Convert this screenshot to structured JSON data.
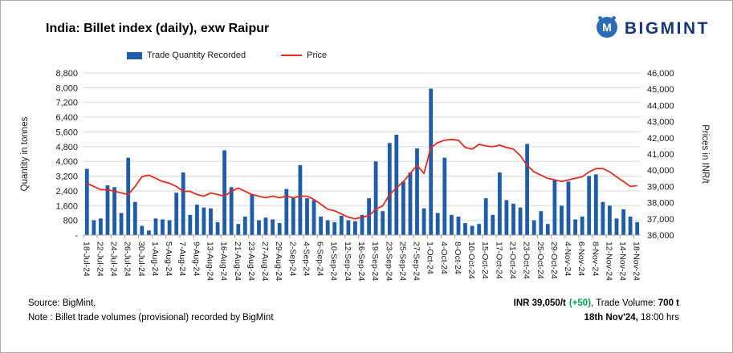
{
  "header": {
    "title": "India: Billet index (daily), exw Raipur",
    "logo_text": "BIGMINT"
  },
  "legend": {
    "bars_label": "Trade Quantity Recorded",
    "line_label": "Price"
  },
  "axes": {
    "left_title": "Quantity in tonnes",
    "right_title": "Prices in INR/t",
    "left_ticks": [
      "-",
      "800",
      "1,600",
      "2,400",
      "3,200",
      "4,000",
      "4,800",
      "5,600",
      "6,400",
      "7,200",
      "8,000",
      "8,800"
    ],
    "right_ticks": [
      "36,000",
      "37,000",
      "38,000",
      "39,000",
      "40,000",
      "41,000",
      "42,000",
      "43,000",
      "44,000",
      "45,000",
      "46,000"
    ]
  },
  "chart_data": {
    "type": "combo",
    "title": "India: Billet index (daily), exw Raipur",
    "xlabel": "",
    "left_axis": {
      "label": "Quantity in tonnes",
      "min": 0,
      "max": 8800,
      "step": 800
    },
    "right_axis": {
      "label": "Prices in INR/t",
      "min": 36000,
      "max": 46000,
      "step": 1000
    },
    "grid": "horizontal",
    "legend_position": "top",
    "label_every": 2,
    "x_tick_labels": [
      "18-Jul-24",
      "22-Jul-24",
      "24-Jul-24",
      "26-Jul-24",
      "30-Jul-24",
      "1-Aug-24",
      "5-Aug-24",
      "7-Aug-24",
      "9-Aug-24",
      "13-Aug-24",
      "16-Aug-24",
      "21-Aug-24",
      "23-Aug-24",
      "27-Aug-24",
      "29-Aug-24",
      "2-Sep-24",
      "4-Sep-24",
      "6-Sep-24",
      "10-Sep-24",
      "12-Sep-24",
      "16-Sep-24",
      "19-Sep-24",
      "23-Sep-24",
      "25-Sep-24",
      "27-Sep-24",
      "1-Oct-24",
      "4-Oct-24",
      "8-Oct-24",
      "10-Oct-24",
      "15-Oct-24",
      "17-Oct-24",
      "21-Oct-24",
      "23-Oct-24",
      "25-Oct-24",
      "29-Oct-24",
      "4-Nov-24",
      "6-Nov-24",
      "8-Nov-24",
      "12-Nov-24",
      "14-Nov-24",
      "18-Nov-24"
    ],
    "series": [
      {
        "name": "Trade Quantity Recorded",
        "type": "bar",
        "axis": "left",
        "color": "#1f5caa",
        "values": [
          3600,
          800,
          900,
          2700,
          2600,
          1200,
          4200,
          1800,
          500,
          250,
          900,
          850,
          800,
          2300,
          3400,
          1100,
          1650,
          1500,
          1450,
          700,
          4600,
          2600,
          600,
          1000,
          2200,
          800,
          950,
          850,
          650,
          2500,
          2050,
          3800,
          2000,
          1900,
          1000,
          800,
          700,
          1050,
          800,
          750,
          1100,
          2000,
          4000,
          1300,
          5000,
          5450,
          2900,
          3400,
          4700,
          1450,
          7950,
          1200,
          4200,
          1100,
          1000,
          650,
          500,
          600,
          2000,
          1100,
          3400,
          1900,
          1700,
          1500,
          4950,
          800,
          1300,
          600,
          3000,
          1600,
          2900,
          850,
          1000,
          3200,
          3300,
          1800,
          1600,
          900,
          1400,
          1000,
          700
        ]
      },
      {
        "name": "Price",
        "type": "line",
        "axis": "right",
        "color": "#e02b20",
        "values": [
          39200,
          39000,
          38800,
          38800,
          38700,
          38600,
          38500,
          39000,
          39600,
          39700,
          39500,
          39300,
          39200,
          39000,
          38700,
          38700,
          38500,
          38400,
          38600,
          38500,
          38400,
          38700,
          38900,
          38700,
          38500,
          38400,
          38300,
          38400,
          38300,
          38400,
          38300,
          38400,
          38400,
          38200,
          37900,
          37600,
          37500,
          37300,
          37100,
          37000,
          37100,
          37200,
          37600,
          37800,
          38500,
          38900,
          39300,
          39800,
          40300,
          39800,
          41400,
          41700,
          41850,
          41900,
          41850,
          41400,
          41300,
          41600,
          41500,
          41450,
          41550,
          41400,
          41300,
          40900,
          40300,
          39900,
          39700,
          39500,
          39400,
          39300,
          39400,
          39500,
          39600,
          39900,
          40100,
          40100,
          39900,
          39600,
          39300,
          39000,
          39050
        ]
      }
    ]
  },
  "footer": {
    "source": "Source: BigMint,",
    "note": "Note : Billet trade volumes (provisional) recorded by BigMint",
    "price_bold": "INR 39,050/t",
    "price_change": "(+50)",
    "volume_prefix": ", Trade Volume: ",
    "volume_value": "700 t",
    "timestamp_bold": "18th Nov'24,",
    "timestamp_rest": " 18:00 hrs"
  },
  "colors": {
    "bar": "#1f5caa",
    "line": "#e02b20",
    "change_positive": "#00a651",
    "logo": "#16357f",
    "gridline": "#d9d9d9"
  }
}
